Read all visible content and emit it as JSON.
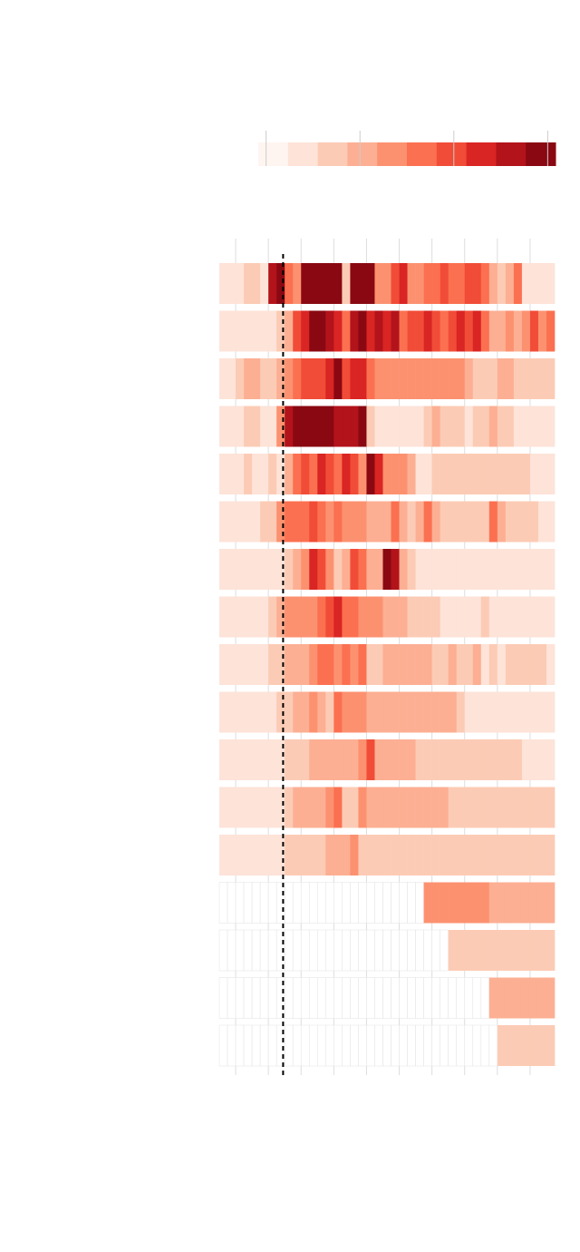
{
  "chart_data": {
    "type": "heatmap",
    "colors": [
      "#fff5f0",
      "#fde3d8",
      "#fccbb5",
      "#fcaf93",
      "#fc9170",
      "#fb7050",
      "#f14c37",
      "#d92523",
      "#b3131a",
      "#8a0812"
    ],
    "vlim": [
      -0.25,
      9.25
    ],
    "vticks": [
      0,
      3,
      6,
      9
    ],
    "xlim": [
      0,
      102.5
    ],
    "xticks": [
      5,
      15,
      25,
      35,
      45,
      55,
      65,
      75,
      85,
      95
    ],
    "vline": 19.5,
    "values": [
      [
        1,
        1,
        1,
        2,
        2,
        1,
        8,
        9,
        5,
        4,
        9,
        9,
        9,
        9,
        9,
        2,
        9,
        9,
        9,
        4,
        4,
        6,
        7,
        4,
        4,
        5,
        5,
        6,
        5,
        5,
        6,
        6,
        5,
        3,
        2,
        3,
        5,
        1,
        1,
        1,
        1
      ],
      [
        1,
        1,
        1,
        1,
        1,
        1,
        1,
        2,
        3,
        6,
        7,
        9,
        9,
        8,
        7,
        5,
        8,
        9,
        7,
        8,
        7,
        8,
        5,
        6,
        6,
        7,
        6,
        5,
        6,
        7,
        6,
        7,
        5,
        3,
        3,
        4,
        3,
        4,
        6,
        4,
        5
      ],
      [
        1,
        1,
        2,
        3,
        3,
        2,
        2,
        3,
        4,
        5,
        6,
        6,
        6,
        7,
        9,
        6,
        7,
        7,
        5,
        4,
        4,
        4,
        4,
        4,
        4,
        4,
        4,
        4,
        4,
        4,
        3,
        2,
        2,
        2,
        3,
        3,
        2,
        2,
        2,
        2,
        2
      ],
      [
        1,
        1,
        1,
        2,
        2,
        1,
        1,
        4,
        8,
        9,
        9,
        9,
        9,
        9,
        8,
        8,
        8,
        9,
        2,
        1,
        1,
        1,
        1,
        1,
        1,
        2,
        3,
        2,
        2,
        2,
        1,
        2,
        2,
        3,
        2,
        2,
        1,
        1,
        1,
        1,
        1
      ],
      [
        1,
        1,
        1,
        2,
        1,
        1,
        2,
        1,
        3,
        5,
        6,
        5,
        7,
        6,
        5,
        7,
        6,
        4,
        9,
        7,
        4,
        4,
        4,
        3,
        1,
        1,
        2,
        2,
        2,
        2,
        2,
        2,
        2,
        2,
        2,
        2,
        2,
        2,
        1,
        1,
        1
      ],
      [
        1,
        1,
        1,
        1,
        1,
        2,
        2,
        4,
        5,
        5,
        5,
        6,
        5,
        4,
        5,
        4,
        4,
        4,
        3,
        3,
        3,
        5,
        3,
        2,
        3,
        5,
        3,
        2,
        2,
        2,
        2,
        2,
        2,
        5,
        3,
        2,
        2,
        2,
        2,
        1,
        1
      ],
      [
        1,
        1,
        1,
        1,
        1,
        1,
        1,
        1,
        2,
        3,
        4,
        7,
        6,
        4,
        2,
        3,
        6,
        5,
        3,
        3,
        9,
        8,
        3,
        2,
        1,
        1,
        1,
        1,
        1,
        1,
        1,
        1,
        1,
        1,
        1,
        1,
        1,
        1,
        1,
        1,
        1
      ],
      [
        1,
        1,
        1,
        1,
        1,
        1,
        2,
        3,
        4,
        4,
        4,
        4,
        5,
        6,
        7,
        5,
        5,
        4,
        4,
        4,
        3,
        3,
        3,
        2,
        2,
        2,
        2,
        1,
        1,
        1,
        1,
        1,
        2,
        1,
        1,
        1,
        1,
        1,
        1,
        1,
        1
      ],
      [
        1,
        1,
        1,
        1,
        1,
        1,
        2,
        2,
        3,
        3,
        3,
        4,
        5,
        5,
        4,
        5,
        4,
        5,
        2,
        2,
        3,
        3,
        3,
        3,
        3,
        3,
        2,
        2,
        3,
        2,
        2,
        3,
        1,
        2,
        1,
        2,
        2,
        2,
        2,
        2,
        1
      ],
      [
        1,
        1,
        1,
        1,
        1,
        1,
        1,
        2,
        2,
        3,
        3,
        4,
        3,
        2,
        5,
        4,
        4,
        4,
        3,
        3,
        3,
        3,
        3,
        3,
        3,
        3,
        3,
        3,
        3,
        2,
        1,
        1,
        1,
        1,
        1,
        1,
        1,
        1,
        1,
        1,
        1
      ],
      [
        1,
        1,
        1,
        1,
        1,
        1,
        1,
        1,
        2,
        2,
        2,
        3,
        3,
        3,
        3,
        3,
        3,
        4,
        6,
        3,
        3,
        3,
        3,
        3,
        2,
        2,
        2,
        2,
        2,
        2,
        2,
        2,
        2,
        2,
        2,
        2,
        2,
        1,
        1,
        1,
        1
      ],
      [
        1,
        1,
        1,
        1,
        1,
        1,
        1,
        1,
        2,
        3,
        3,
        3,
        3,
        4,
        5,
        2,
        2,
        4,
        3,
        3,
        3,
        3,
        3,
        3,
        3,
        3,
        3,
        3,
        2,
        2,
        2,
        2,
        2,
        2,
        2,
        2,
        2,
        2,
        2,
        2,
        2
      ],
      [
        1,
        1,
        1,
        1,
        1,
        1,
        1,
        1,
        2,
        2,
        2,
        2,
        2,
        3,
        3,
        3,
        4,
        2,
        2,
        2,
        2,
        2,
        2,
        2,
        2,
        2,
        2,
        2,
        2,
        2,
        2,
        2,
        2,
        2,
        2,
        2,
        2,
        2,
        2,
        2,
        2
      ],
      [
        null,
        null,
        null,
        null,
        null,
        null,
        null,
        null,
        null,
        null,
        null,
        null,
        null,
        null,
        null,
        null,
        null,
        null,
        null,
        null,
        null,
        null,
        null,
        null,
        null,
        4,
        4,
        4,
        4,
        4,
        4,
        4,
        4,
        3,
        3,
        3,
        3,
        3,
        3,
        3,
        3
      ],
      [
        null,
        null,
        null,
        null,
        null,
        null,
        null,
        null,
        null,
        null,
        null,
        null,
        null,
        null,
        null,
        null,
        null,
        null,
        null,
        null,
        null,
        null,
        null,
        null,
        null,
        null,
        null,
        null,
        2,
        2,
        2,
        2,
        2,
        2,
        2,
        2,
        2,
        2,
        2,
        2,
        2
      ],
      [
        null,
        null,
        null,
        null,
        null,
        null,
        null,
        null,
        null,
        null,
        null,
        null,
        null,
        null,
        null,
        null,
        null,
        null,
        null,
        null,
        null,
        null,
        null,
        null,
        null,
        null,
        null,
        null,
        null,
        null,
        null,
        null,
        null,
        3,
        3,
        3,
        3,
        3,
        3,
        3,
        3
      ],
      [
        null,
        null,
        null,
        null,
        null,
        null,
        null,
        null,
        null,
        null,
        null,
        null,
        null,
        null,
        null,
        null,
        null,
        null,
        null,
        null,
        null,
        null,
        null,
        null,
        null,
        null,
        null,
        null,
        null,
        null,
        null,
        null,
        null,
        null,
        2,
        2,
        2,
        2,
        2,
        2,
        2
      ]
    ]
  }
}
